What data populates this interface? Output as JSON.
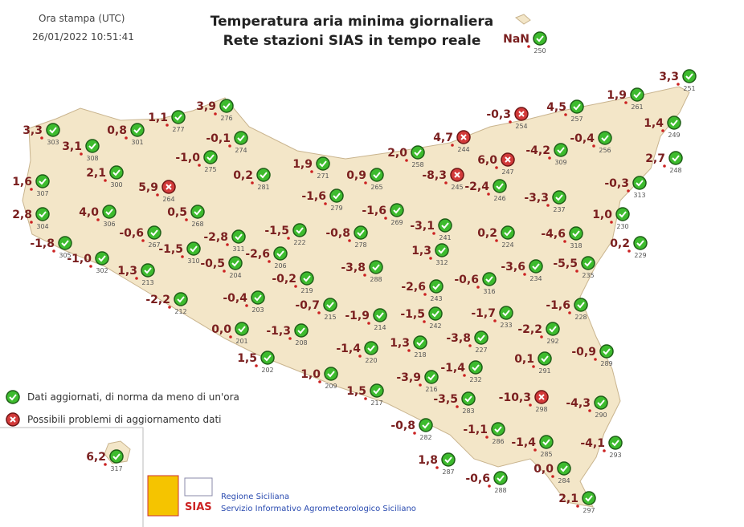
{
  "header": {
    "print_label": "Ora stampa (UTC)",
    "print_time": "26/01/2022 10:51:41",
    "title_line1": "Temperatura aria minima giornaliera",
    "title_line2": "Rete stazioni SIAS in tempo reale"
  },
  "stations": [
    {
      "id": "250",
      "value": "NaN",
      "status": "ok"
    },
    {
      "id": "303",
      "value": "3,3",
      "status": "ok"
    },
    {
      "id": "301",
      "value": "0,8",
      "status": "ok"
    },
    {
      "id": "277",
      "value": "1,1",
      "status": "ok"
    },
    {
      "id": "276",
      "value": "3,9",
      "status": "ok"
    },
    {
      "id": "308",
      "value": "3,1",
      "status": "ok"
    },
    {
      "id": "274",
      "value": "-0,1",
      "status": "ok"
    },
    {
      "id": "300",
      "value": "2,1",
      "status": "ok"
    },
    {
      "id": "275",
      "value": "-1,0",
      "status": "ok"
    },
    {
      "id": "264",
      "value": "5,9",
      "status": "problem"
    },
    {
      "id": "307",
      "value": "1,6",
      "status": "ok"
    },
    {
      "id": "281",
      "value": "0,2",
      "status": "ok"
    },
    {
      "id": "271",
      "value": "1,9",
      "status": "ok"
    },
    {
      "id": "265",
      "value": "0,9",
      "status": "ok"
    },
    {
      "id": "258",
      "value": "2,0",
      "status": "ok"
    },
    {
      "id": "244",
      "value": "4,7",
      "status": "problem"
    },
    {
      "id": "254",
      "value": "-0,3",
      "status": "problem"
    },
    {
      "id": "257",
      "value": "4,5",
      "status": "ok"
    },
    {
      "id": "261",
      "value": "1,9",
      "status": "ok"
    },
    {
      "id": "251",
      "value": "3,3",
      "status": "ok"
    },
    {
      "id": "249",
      "value": "1,4",
      "status": "ok"
    },
    {
      "id": "256",
      "value": "-0,4",
      "status": "ok"
    },
    {
      "id": "309",
      "value": "-4,2",
      "status": "ok"
    },
    {
      "id": "247",
      "value": "6,0",
      "status": "problem"
    },
    {
      "id": "245",
      "value": "-8,3",
      "status": "problem"
    },
    {
      "id": "246",
      "value": "-2,4",
      "status": "ok"
    },
    {
      "id": "248",
      "value": "2,7",
      "status": "ok"
    },
    {
      "id": "313",
      "value": "-0,3",
      "status": "ok"
    },
    {
      "id": "237",
      "value": "-3,3",
      "status": "ok"
    },
    {
      "id": "230",
      "value": "1,0",
      "status": "ok"
    },
    {
      "id": "304",
      "value": "2,8",
      "status": "ok"
    },
    {
      "id": "306",
      "value": "4,0",
      "status": "ok"
    },
    {
      "id": "268",
      "value": "0,5",
      "status": "ok"
    },
    {
      "id": "279",
      "value": "-1,6",
      "status": "ok"
    },
    {
      "id": "269",
      "value": "-1,6",
      "status": "ok"
    },
    {
      "id": "241",
      "value": "-3,1",
      "status": "ok"
    },
    {
      "id": "224",
      "value": "0,2",
      "status": "ok"
    },
    {
      "id": "318",
      "value": "-4,6",
      "status": "ok"
    },
    {
      "id": "229",
      "value": "0,2",
      "status": "ok"
    },
    {
      "id": "305",
      "value": "-1,8",
      "status": "ok"
    },
    {
      "id": "302",
      "value": "-1,0",
      "status": "ok"
    },
    {
      "id": "267",
      "value": "-0,6",
      "status": "ok"
    },
    {
      "id": "311",
      "value": "-2,8",
      "status": "ok"
    },
    {
      "id": "222",
      "value": "-1,5",
      "status": "ok"
    },
    {
      "id": "278",
      "value": "-0,8",
      "status": "ok"
    },
    {
      "id": "213",
      "value": "1,3",
      "status": "ok"
    },
    {
      "id": "310",
      "value": "-1,5",
      "status": "ok"
    },
    {
      "id": "204",
      "value": "-0,5",
      "status": "ok"
    },
    {
      "id": "206",
      "value": "-2,6",
      "status": "ok"
    },
    {
      "id": "288",
      "value": "-3,8",
      "status": "ok"
    },
    {
      "id": "312",
      "value": "1,3",
      "status": "ok"
    },
    {
      "id": "234",
      "value": "-3,6",
      "status": "ok"
    },
    {
      "id": "235",
      "value": "-5,5",
      "status": "ok"
    },
    {
      "id": "219",
      "value": "-0,2",
      "status": "ok"
    },
    {
      "id": "243",
      "value": "-2,6",
      "status": "ok"
    },
    {
      "id": "316",
      "value": "-0,6",
      "status": "ok"
    },
    {
      "id": "212",
      "value": "-2,2",
      "status": "ok"
    },
    {
      "id": "203",
      "value": "-0,4",
      "status": "ok"
    },
    {
      "id": "215",
      "value": "-0,7",
      "status": "ok"
    },
    {
      "id": "214",
      "value": "-1,9",
      "status": "ok"
    },
    {
      "id": "242",
      "value": "-1,5",
      "status": "ok"
    },
    {
      "id": "233",
      "value": "-1,7",
      "status": "ok"
    },
    {
      "id": "228",
      "value": "-1,6",
      "status": "ok"
    },
    {
      "id": "201",
      "value": "0,0",
      "status": "ok"
    },
    {
      "id": "208",
      "value": "-1,3",
      "status": "ok"
    },
    {
      "id": "227",
      "value": "-3,8",
      "status": "ok"
    },
    {
      "id": "292",
      "value": "-2,2",
      "status": "ok"
    },
    {
      "id": "220",
      "value": "-1,4",
      "status": "ok"
    },
    {
      "id": "218",
      "value": "1,3",
      "status": "ok"
    },
    {
      "id": "291",
      "value": "0,1",
      "status": "ok"
    },
    {
      "id": "289",
      "value": "-0,9",
      "status": "ok"
    },
    {
      "id": "202",
      "value": "1,5",
      "status": "ok"
    },
    {
      "id": "232",
      "value": "-1,4",
      "status": "ok"
    },
    {
      "id": "209",
      "value": "1,0",
      "status": "ok"
    },
    {
      "id": "216",
      "value": "-3,9",
      "status": "ok"
    },
    {
      "id": "217",
      "value": "1,5",
      "status": "ok"
    },
    {
      "id": "283",
      "value": "-3,5",
      "status": "ok"
    },
    {
      "id": "298",
      "value": "-10,3",
      "status": "problem"
    },
    {
      "id": "290",
      "value": "-4,3",
      "status": "ok"
    },
    {
      "id": "282",
      "value": "-0,8",
      "status": "ok"
    },
    {
      "id": "286",
      "value": "-1,1",
      "status": "ok"
    },
    {
      "id": "285",
      "value": "-1,4",
      "status": "ok"
    },
    {
      "id": "293",
      "value": "-4,1",
      "status": "ok"
    },
    {
      "id": "287",
      "value": "1,8",
      "status": "ok"
    },
    {
      "id": "317",
      "value": "6,2",
      "status": "ok"
    },
    {
      "id": "288",
      "value": "-0,6",
      "status": "ok"
    },
    {
      "id": "284",
      "value": "0,0",
      "status": "ok"
    },
    {
      "id": "297",
      "value": "2,1",
      "status": "ok"
    }
  ],
  "legend": [
    {
      "text": "Dati aggiornati, di norma da meno di un'ora",
      "status": "ok"
    },
    {
      "text": "Possibili problemi di aggiornamento dati",
      "status": "problem"
    }
  ],
  "footer": {
    "logo": "SIAS",
    "org": "Regione Siciliana",
    "service": "Servizio Informativo Agrometeorologico Siciliano"
  }
}
